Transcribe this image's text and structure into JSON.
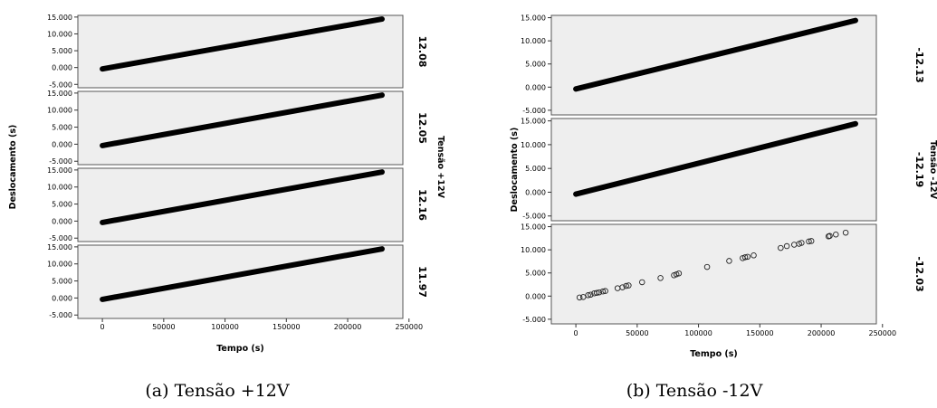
{
  "chart_data": [
    {
      "type": "scatter",
      "caption": "(a) Tensão +12V",
      "xlabel": "Tempo (s)",
      "ylabel": "Deslocamento (s)",
      "facet_label": "Tensão +12V",
      "xlim": [
        -20000,
        245000
      ],
      "ylim": [
        -6000,
        15500
      ],
      "x_ticks": [
        "0",
        "50000",
        "100000",
        "150000",
        "200000",
        "250000"
      ],
      "x_tick_values": [
        0,
        50000,
        100000,
        150000,
        200000,
        250000
      ],
      "y_ticks": [
        "-5.000",
        "0.000",
        "5.000",
        "10.000",
        "15.000"
      ],
      "y_tick_values": [
        -5000,
        0,
        5000,
        10000,
        15000
      ],
      "panel_bg": "#eeeeee",
      "marker_style": "dense",
      "panels": [
        {
          "label": "12.08",
          "x": [
            0,
            228000
          ],
          "y": [
            -400,
            14400
          ]
        },
        {
          "label": "12.05",
          "x": [
            0,
            228000
          ],
          "y": [
            -400,
            14400
          ]
        },
        {
          "label": "12.16",
          "x": [
            0,
            228000
          ],
          "y": [
            -400,
            14400
          ]
        },
        {
          "label": "11.97",
          "x": [
            0,
            228000
          ],
          "y": [
            -400,
            14400
          ]
        }
      ]
    },
    {
      "type": "scatter",
      "caption": "(b) Tensão -12V",
      "xlabel": "Tempo (s)",
      "ylabel": "Deslocamento (s)",
      "facet_label": "Tensão -12V",
      "xlim": [
        -20000,
        245000
      ],
      "ylim": [
        -6000,
        15500
      ],
      "x_ticks": [
        "0",
        "50000",
        "100000",
        "150000",
        "200000",
        "250000"
      ],
      "x_tick_values": [
        0,
        50000,
        100000,
        150000,
        200000,
        250000
      ],
      "y_ticks": [
        "-5.000",
        "0.000",
        "5.000",
        "10.000",
        "15.000"
      ],
      "y_tick_values": [
        -5000,
        0,
        5000,
        10000,
        15000
      ],
      "panel_bg": "#eeeeee",
      "panels": [
        {
          "label": "-12.13",
          "marker_style": "dense",
          "x": [
            0,
            228000
          ],
          "y": [
            -400,
            14400
          ]
        },
        {
          "label": "-12.19",
          "marker_style": "dense",
          "x": [
            0,
            228000
          ],
          "y": [
            -400,
            14400
          ]
        },
        {
          "label": "-12.03",
          "marker_style": "open-circle",
          "x": [
            3000,
            6000,
            10000,
            12000,
            15000,
            17000,
            19000,
            22000,
            24000,
            34000,
            38000,
            41000,
            43000,
            54000,
            69000,
            80000,
            82000,
            84000,
            107000,
            125000,
            136000,
            138000,
            140000,
            145000,
            167000,
            172000,
            178000,
            182000,
            184000,
            190000,
            192000,
            206000,
            207000,
            212000,
            220000
          ],
          "y": [
            -300,
            -200,
            200,
            300,
            600,
            700,
            800,
            1000,
            1100,
            1700,
            1900,
            2200,
            2300,
            3000,
            3900,
            4500,
            4700,
            4900,
            6300,
            7600,
            8200,
            8400,
            8500,
            8800,
            10400,
            10800,
            11100,
            11300,
            11500,
            11800,
            11900,
            12900,
            13000,
            13300,
            13700
          ]
        }
      ]
    }
  ]
}
